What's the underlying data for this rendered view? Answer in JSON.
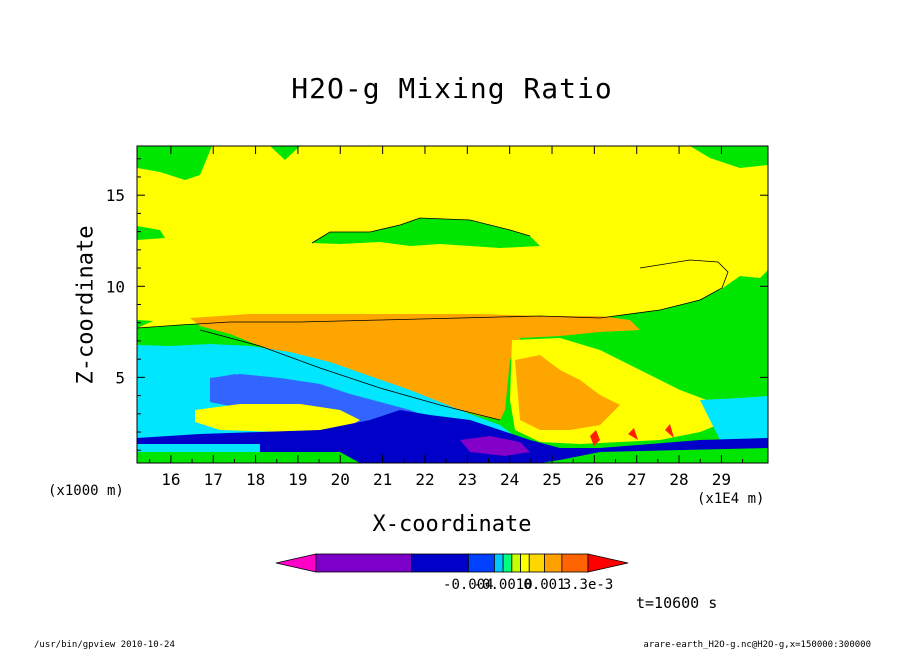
{
  "title": "H2O-g Mixing Ratio",
  "chart_data": {
    "type": "heatmap",
    "title": "H2O-g Mixing Ratio",
    "xlabel": "X-coordinate",
    "ylabel": "Z-coordinate",
    "x_unit_left": "(x1000 m)",
    "x_unit_right": "(x1E4 m)",
    "x_ticks": [
      "16",
      "17",
      "18",
      "19",
      "20",
      "21",
      "22",
      "23",
      "24",
      "25",
      "26",
      "27",
      "28",
      "29"
    ],
    "y_ticks": [
      "5",
      "10",
      "15"
    ],
    "xlim": [
      15.2,
      30.1
    ],
    "ylim": [
      0.3,
      17.7
    ],
    "colorbar_labels": [
      "-0.004",
      "-0.0010",
      "0.001",
      "3.3e-3"
    ],
    "colorbar_colors": [
      "#ff00c8",
      "#7d00c8",
      "#0000c8",
      "#0040ff",
      "#00c8ff",
      "#00ff80",
      "#c8ff00",
      "#ffff00",
      "#ffd700",
      "#ffa000",
      "#ff6400",
      "#ff0000"
    ],
    "field_colors": {
      "green": "#00e600",
      "yellow": "#ffff00",
      "gold": "#ffcc00",
      "orange": "#ffa500",
      "cyan": "#00e6ff",
      "blue": "#3264ff",
      "navy": "#0000c8",
      "purple": "#8200c8",
      "red": "#ff2000"
    },
    "time_label": "t=10600 s"
  },
  "footer": {
    "left": "/usr/bin/gpview   2010-10-24",
    "right": "arare-earth_H2O-g.nc@H2O-g,x=150000:300000"
  }
}
